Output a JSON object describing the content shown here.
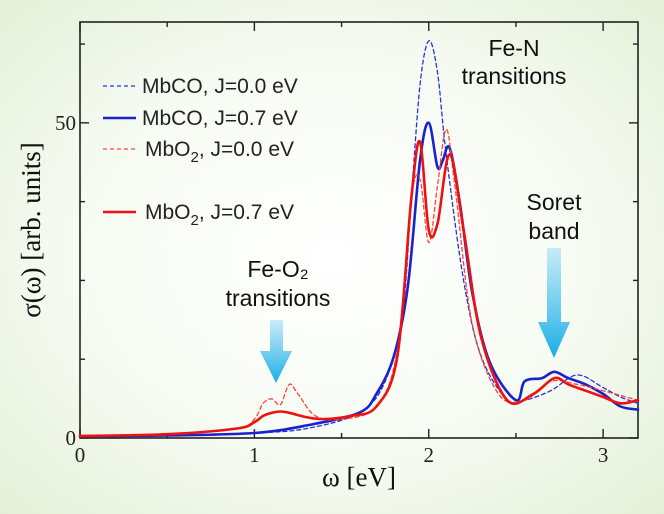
{
  "chart_data": {
    "type": "line",
    "xlabel": "ω [eV]",
    "ylabel": "σ(ω) [arb. units]",
    "xlim": [
      0,
      3.2
    ],
    "ylim": [
      0,
      66
    ],
    "xticks": [
      0,
      1,
      2,
      3
    ],
    "yticks": [
      0,
      50
    ],
    "legend_position": "upper-left",
    "series": [
      {
        "name": "MbCO, J=0.0 eV",
        "color": "#2233dd",
        "dash": "dashed",
        "x": [
          0,
          0.5,
          1.0,
          1.3,
          1.6,
          1.75,
          1.85,
          1.9,
          1.95,
          2.0,
          2.05,
          2.1,
          2.2,
          2.3,
          2.45,
          2.55,
          2.7,
          2.85,
          3.0,
          3.1,
          3.2
        ],
        "y": [
          0.3,
          0.4,
          0.8,
          1.5,
          4,
          9,
          20,
          38,
          56,
          63,
          58,
          45,
          25,
          13,
          6,
          6,
          7.5,
          10,
          8,
          6.5,
          5.5
        ]
      },
      {
        "name": "MbCO, J=0.7 eV",
        "color": "#1a22cc",
        "dash": "solid",
        "x": [
          0,
          0.5,
          1.0,
          1.3,
          1.6,
          1.7,
          1.8,
          1.88,
          1.95,
          2.0,
          2.05,
          2.08,
          2.12,
          2.18,
          2.25,
          2.35,
          2.5,
          2.55,
          2.65,
          2.72,
          2.8,
          2.9,
          3.0,
          3.1,
          3.2
        ],
        "y": [
          0.3,
          0.4,
          0.8,
          2,
          4,
          7,
          13,
          24,
          44,
          50,
          43,
          44,
          46,
          37,
          23,
          12,
          6,
          9,
          9.5,
          10.5,
          9.5,
          8.5,
          7,
          5,
          4.5
        ]
      },
      {
        "name": "MbO_2, J=0.0 eV",
        "color": "#ff4433",
        "dash": "dashed",
        "x": [
          0,
          0.5,
          0.9,
          1.0,
          1.05,
          1.1,
          1.15,
          1.2,
          1.25,
          1.35,
          1.5,
          1.7,
          1.82,
          1.9,
          1.95,
          2.0,
          2.05,
          2.1,
          2.15,
          2.25,
          2.4,
          2.55,
          2.7,
          2.85,
          3.0,
          3.2
        ],
        "y": [
          0.3,
          0.6,
          1.5,
          3,
          5.5,
          6.2,
          5.3,
          8.5,
          7,
          3.5,
          3,
          5,
          14,
          38,
          41,
          31,
          40,
          49,
          40,
          18,
          7,
          6,
          9,
          8.5,
          7.5,
          6
        ]
      },
      {
        "name": "MbO_2, J=0.7 eV",
        "color": "#ee1111",
        "dash": "solid",
        "x": [
          0,
          0.5,
          0.9,
          1.0,
          1.05,
          1.1,
          1.15,
          1.2,
          1.3,
          1.4,
          1.55,
          1.7,
          1.82,
          1.9,
          1.95,
          2.0,
          2.05,
          2.12,
          2.2,
          2.3,
          2.45,
          2.6,
          2.72,
          2.8,
          2.9,
          3.0,
          3.1,
          3.2
        ],
        "y": [
          0.3,
          0.6,
          1.5,
          2.5,
          3.5,
          4,
          4.2,
          4,
          3.3,
          3,
          3.5,
          5,
          13,
          38,
          47,
          33,
          34,
          45,
          33,
          16,
          6,
          7,
          9.5,
          8.5,
          7.5,
          6.5,
          5.5,
          6
        ]
      }
    ],
    "annotations": [
      {
        "lines": [
          "Fe-N",
          "transitions"
        ]
      },
      {
        "lines": [
          "Soret",
          "band"
        ]
      },
      {
        "lines": [
          "Fe-O₂",
          "transitions"
        ]
      }
    ]
  }
}
